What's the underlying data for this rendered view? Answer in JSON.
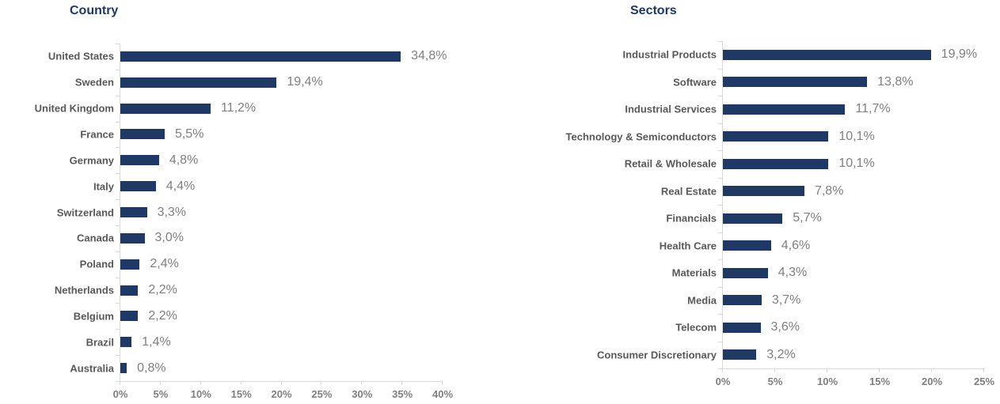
{
  "colors": {
    "bar": "#1f3864",
    "title": "#1f3864",
    "category_label": "#595959",
    "value_label": "#7f7f7f",
    "tick_label": "#7f7f7f",
    "axis_line": "#d9d9d9",
    "background": "#ffffff"
  },
  "chart_data": [
    {
      "type": "bar",
      "orientation": "horizontal",
      "title": "Country",
      "categories": [
        "United States",
        "Sweden",
        "United Kingdom",
        "France",
        "Germany",
        "Italy",
        "Switzerland",
        "Canada",
        "Poland",
        "Netherlands",
        "Belgium",
        "Brazil",
        "Australia"
      ],
      "values": [
        34.8,
        19.4,
        11.2,
        5.5,
        4.8,
        4.4,
        3.3,
        3.0,
        2.4,
        2.2,
        2.2,
        1.4,
        0.8
      ],
      "value_labels": [
        "34,8%",
        "19,4%",
        "11,2%",
        "5,5%",
        "4,8%",
        "4,4%",
        "3,3%",
        "3,0%",
        "2,4%",
        "2,2%",
        "2,2%",
        "1,4%",
        "0,8%"
      ],
      "x_ticks": [
        "0%",
        "5%",
        "10%",
        "15%",
        "20%",
        "25%",
        "30%",
        "35%",
        "40%"
      ],
      "xlim": [
        0,
        40
      ],
      "grid": false,
      "legend": "none",
      "bar_color": "#1f3864"
    },
    {
      "type": "bar",
      "orientation": "horizontal",
      "title": "Sectors",
      "categories": [
        "Industrial Products",
        "Software",
        "Industrial Services",
        "Technology & Semiconductors",
        "Retail & Wholesale",
        "Real Estate",
        "Financials",
        "Health Care",
        "Materials",
        "Media",
        "Telecom",
        "Consumer Discretionary"
      ],
      "values": [
        19.9,
        13.8,
        11.7,
        10.1,
        10.1,
        7.8,
        5.7,
        4.6,
        4.3,
        3.7,
        3.6,
        3.2
      ],
      "value_labels": [
        "19,9%",
        "13,8%",
        "11,7%",
        "10,1%",
        "10,1%",
        "7,8%",
        "5,7%",
        "4,6%",
        "4,3%",
        "3,7%",
        "3,6%",
        "3,2%"
      ],
      "x_ticks": [
        "0%",
        "5%",
        "10%",
        "15%",
        "20%",
        "25%"
      ],
      "xlim": [
        0,
        25
      ],
      "grid": false,
      "legend": "none",
      "bar_color": "#1f3864"
    }
  ]
}
